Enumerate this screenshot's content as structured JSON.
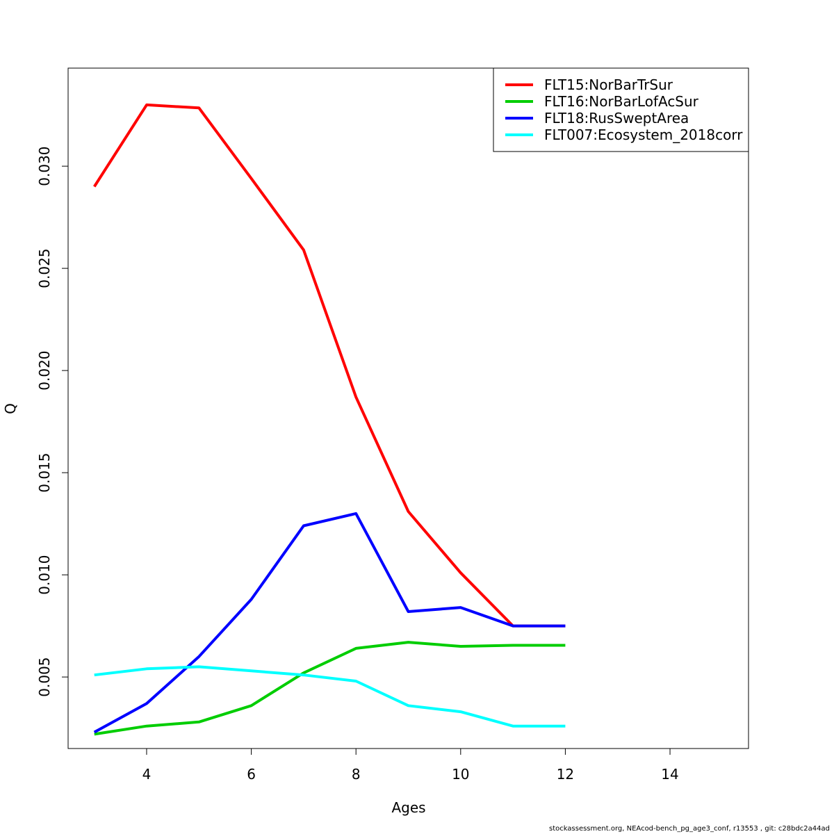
{
  "chart_data": {
    "type": "line",
    "xlabel": "Ages",
    "ylabel": "Q",
    "xlim": [
      2.5,
      15.5
    ],
    "ylim": [
      0.0015,
      0.0348
    ],
    "x_ticks": [
      4,
      6,
      8,
      10,
      12,
      14
    ],
    "y_ticks": [
      0.005,
      0.01,
      0.015,
      0.02,
      0.025,
      0.03
    ],
    "y_tick_labels": [
      "0.005",
      "0.010",
      "0.015",
      "0.020",
      "0.025",
      "0.030"
    ],
    "legend_position": "top-right",
    "grid": false,
    "x": [
      3,
      4,
      5,
      6,
      7,
      8,
      9,
      10,
      11,
      12
    ],
    "series": [
      {
        "name": "FLT15:NorBarTrSur",
        "color": "#ff0000",
        "values": [
          0.029,
          0.033,
          0.03285,
          0.0294,
          0.0259,
          0.0187,
          0.0131,
          0.0101,
          0.0075,
          0.0075
        ]
      },
      {
        "name": "FLT16:NorBarLofAcSur",
        "color": "#00cd00",
        "values": [
          0.0022,
          0.0026,
          0.0028,
          0.0036,
          0.0052,
          0.0064,
          0.0067,
          0.0065,
          0.00655,
          0.00655
        ]
      },
      {
        "name": "FLT18:RusSweptArea",
        "color": "#0000ff",
        "values": [
          0.0023,
          0.0037,
          0.006,
          0.0088,
          0.0124,
          0.013,
          0.0082,
          0.0084,
          0.0075,
          0.0075
        ]
      },
      {
        "name": "FLT007:Ecosystem_2018corr",
        "color": "#00ffff",
        "values": [
          0.0051,
          0.0054,
          0.0055,
          0.0053,
          0.0051,
          0.0048,
          0.0036,
          0.0033,
          0.0026,
          0.0026
        ]
      }
    ]
  },
  "footer": "stockassessment.org, NEAcod-bench_pg_age3_conf, r13553 , git: c28bdc2a44ad"
}
